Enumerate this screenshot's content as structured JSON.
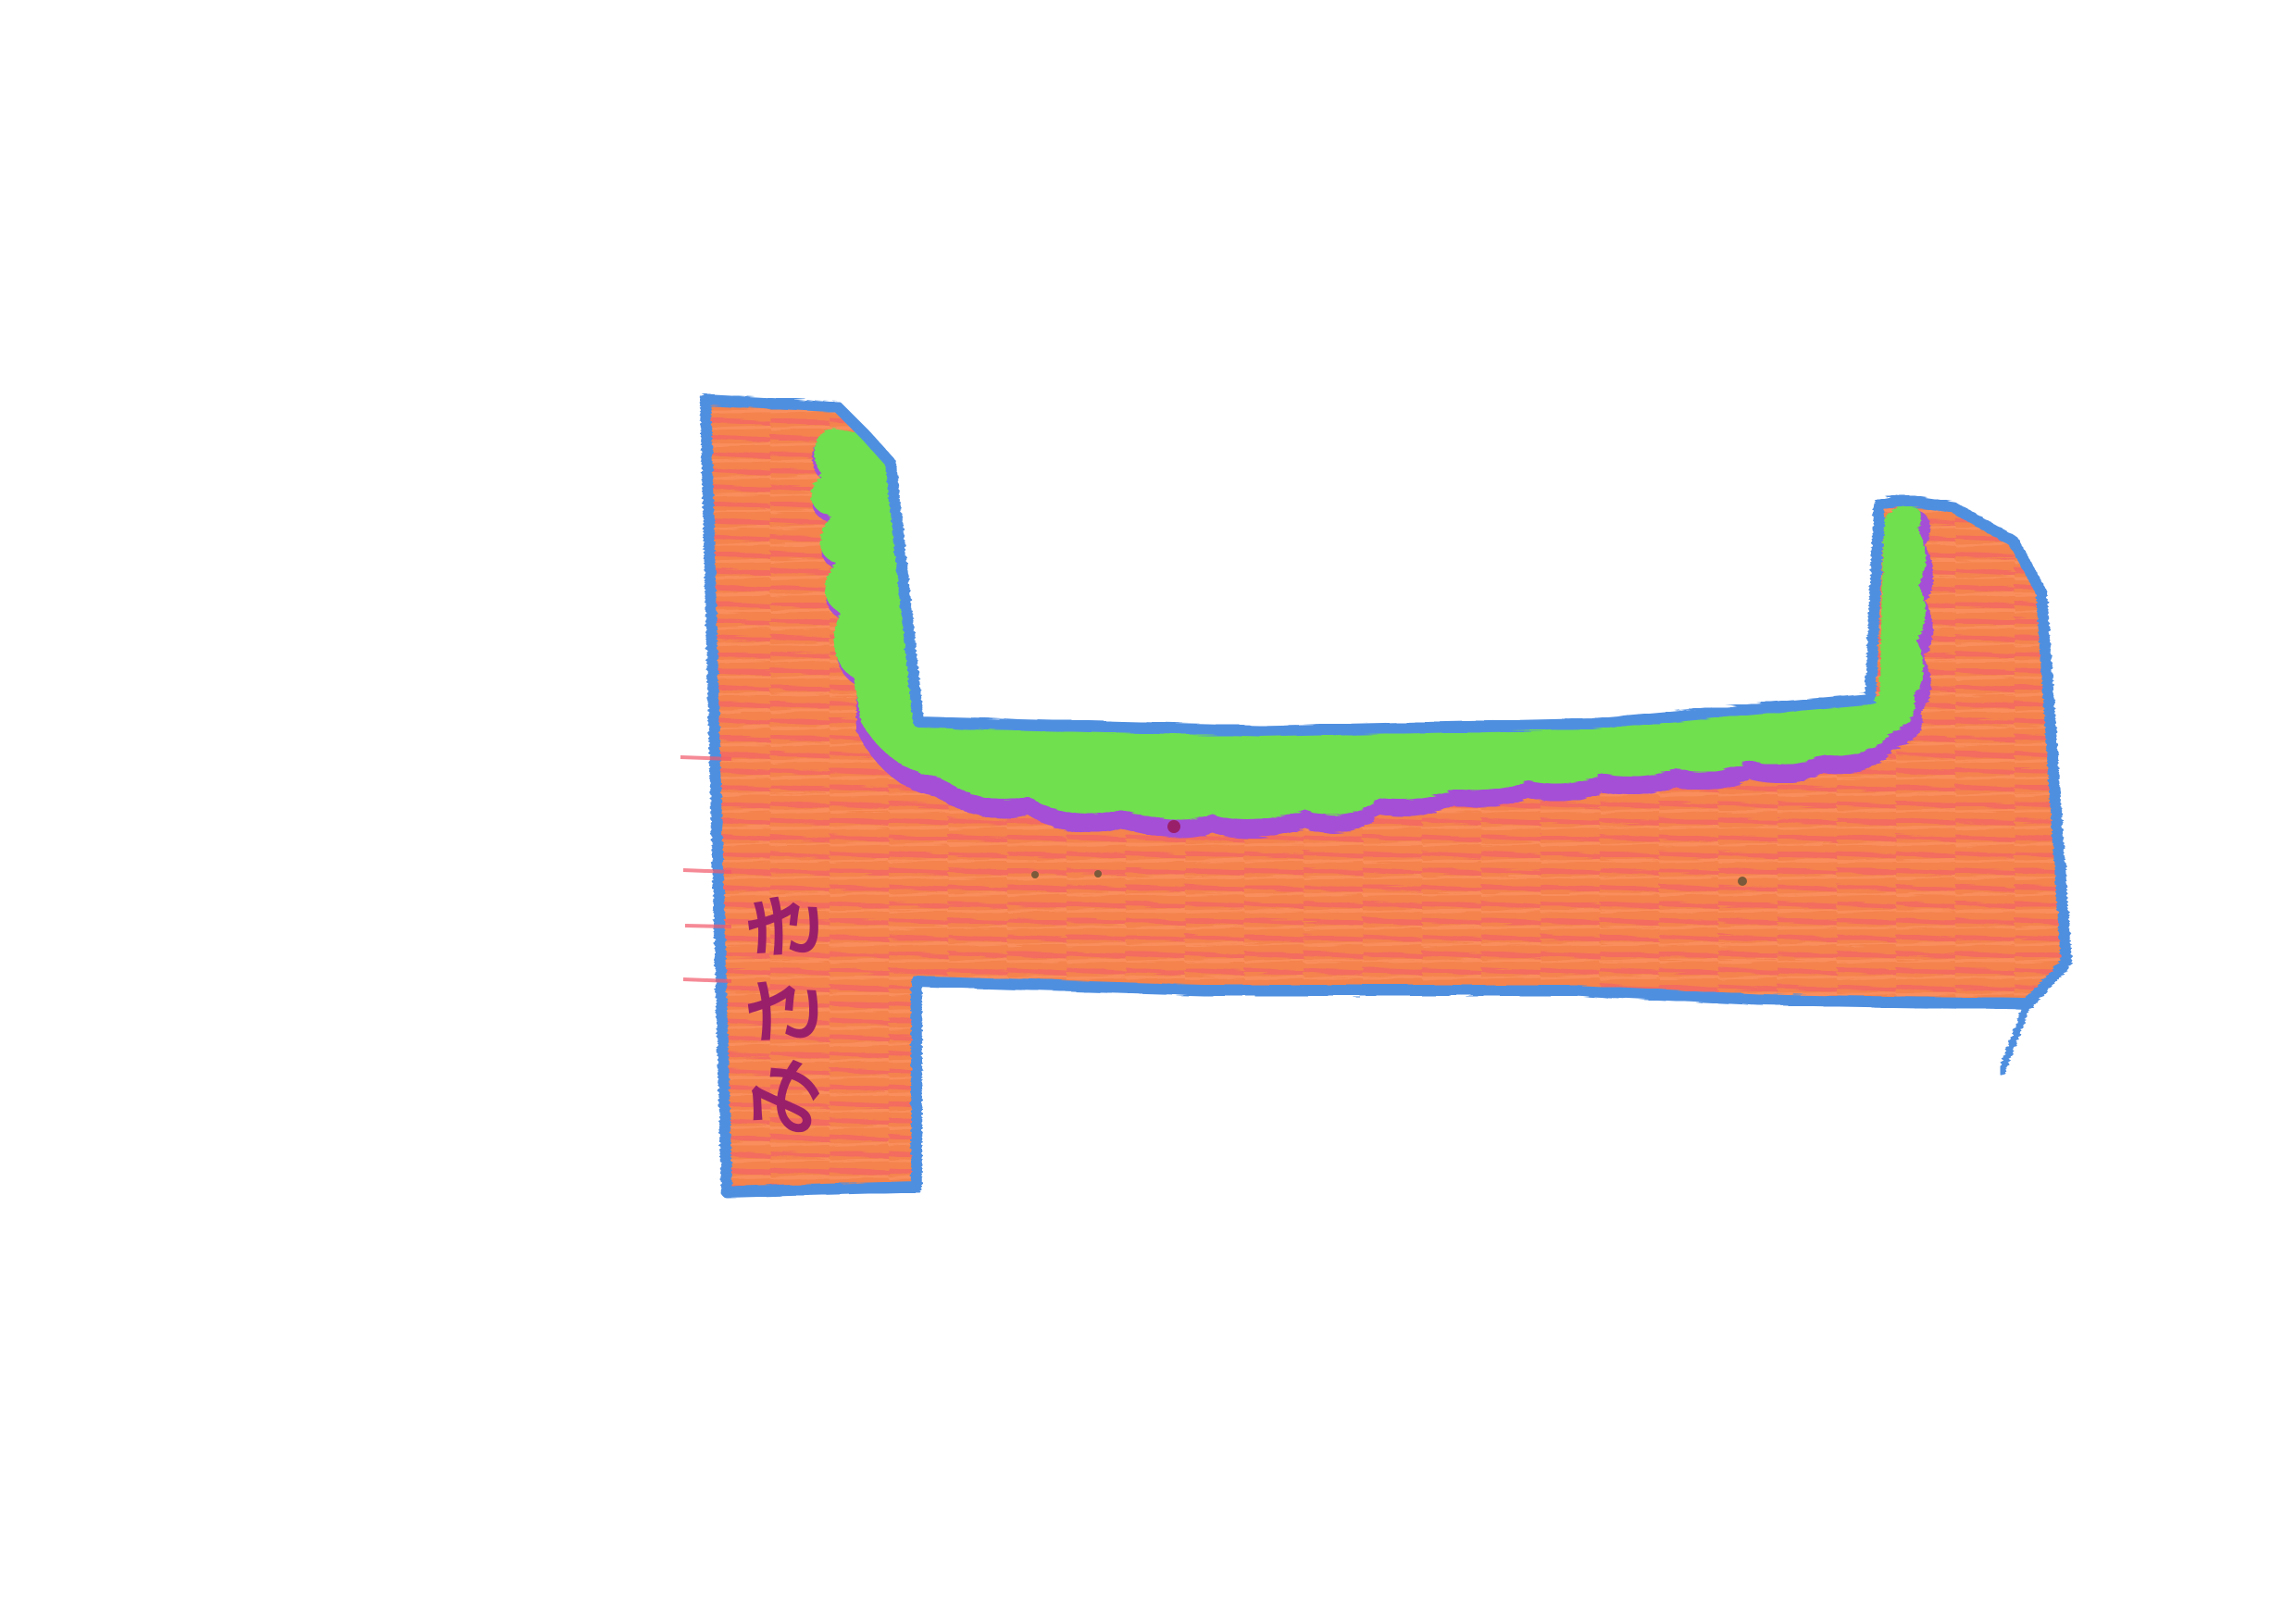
{
  "drawing": {
    "colors": {
      "paper": "#ffffff",
      "outline": "#4f8fe0",
      "fill": "#f4834e",
      "hatch": "#f2596b",
      "inner_band": "#6fe04f",
      "inner_edge": "#a44fd6",
      "signature": "#9a1f6a"
    },
    "signature_text": "みさき"
  }
}
